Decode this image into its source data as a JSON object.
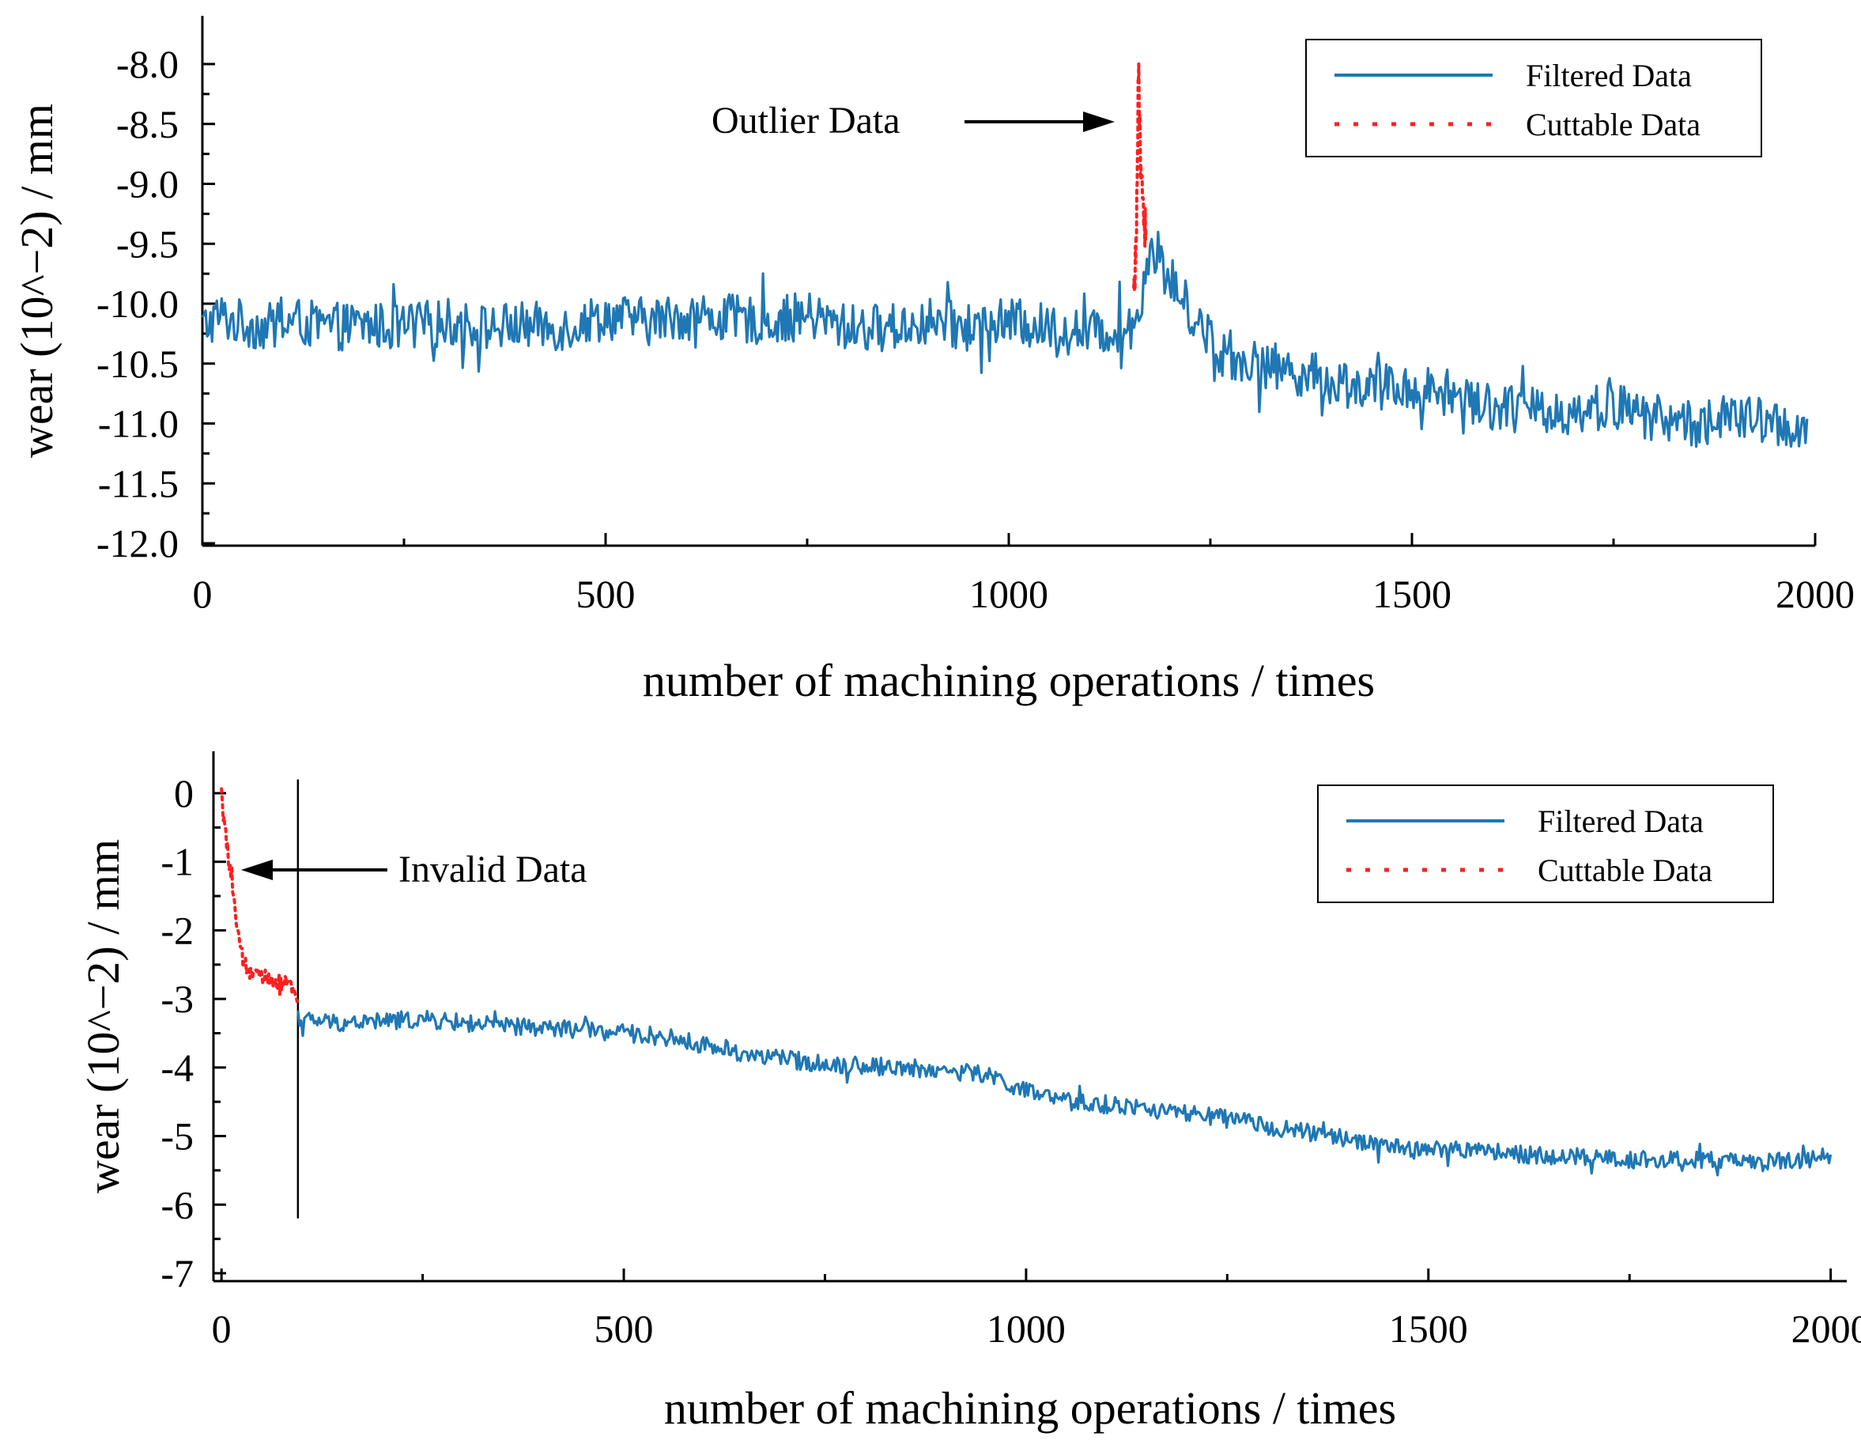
{
  "chart_data": [
    {
      "type": "line",
      "xlabel": "number of machining operations / times",
      "ylabel": "wear (10^−2) / mm",
      "xlim": [
        0,
        2000
      ],
      "ylim": [
        -12.0,
        -7.6
      ],
      "xticks": [
        0,
        500,
        1000,
        1500,
        2000
      ],
      "xtick_labels": [
        "0",
        "500",
        "1000",
        "1500",
        "2000"
      ],
      "yticks": [
        -12.0,
        -11.5,
        -11.0,
        -10.5,
        -10.0,
        -9.5,
        -9.0,
        -8.5,
        -8.0
      ],
      "ytick_labels": [
        "-12.0",
        "-11.5",
        "-11.0",
        "-10.5",
        "-10.0",
        "-9.5",
        "-9.0",
        "-8.5",
        "-8.0"
      ],
      "legend": {
        "position": "top-right",
        "entries": [
          "Filtered Data",
          "Cuttable Data"
        ]
      },
      "annotations": [
        {
          "text": "Outlier Data",
          "points_to": {
            "x": 1160,
            "y": -8.5
          }
        }
      ],
      "series": [
        {
          "name": "Filtered Data",
          "style": "solid",
          "color": "#1f77b4",
          "x": [
            0,
            20,
            40,
            80,
            120,
            150,
            200,
            250,
            300,
            350,
            400,
            450,
            500,
            550,
            600,
            650,
            700,
            750,
            800,
            850,
            900,
            950,
            1000,
            1050,
            1100,
            1150,
            1160,
            1175,
            1190,
            1220,
            1260,
            1300,
            1350,
            1400,
            1450,
            1500,
            1550,
            1600,
            1650,
            1700,
            1750,
            1800,
            1850,
            1900,
            1950,
            1990
          ],
          "y": [
            -10.2,
            -10.1,
            -10.15,
            -10.2,
            -10.15,
            -10.2,
            -10.18,
            -10.2,
            -10.15,
            -10.2,
            -10.18,
            -10.2,
            -10.1,
            -10.15,
            -10.1,
            -10.12,
            -10.15,
            -10.1,
            -10.2,
            -10.2,
            -10.15,
            -10.2,
            -10.15,
            -10.2,
            -10.25,
            -10.2,
            -10.1,
            -9.5,
            -9.7,
            -10.0,
            -10.4,
            -10.5,
            -10.55,
            -10.65,
            -10.7,
            -10.7,
            -10.75,
            -10.85,
            -10.9,
            -10.9,
            -10.85,
            -10.95,
            -11.0,
            -10.95,
            -11.0,
            -11.05
          ],
          "noise": 0.2,
          "n": 1000
        },
        {
          "name": "Cuttable Data",
          "style": "dotted",
          "color": "#ff1f1f",
          "x": [
            1155,
            1158,
            1161,
            1163,
            1165,
            1168,
            1170
          ],
          "y": [
            -10.0,
            -9.5,
            -8.1,
            -8.6,
            -9.0,
            -9.3,
            -9.5
          ],
          "noise": 0.15,
          "n": 40
        }
      ]
    },
    {
      "type": "line",
      "xlabel": "number of machining operations / times",
      "ylabel": "wear (10^−2) / mm",
      "xlim": [
        -10,
        2020
      ],
      "ylim": [
        -7,
        0.5
      ],
      "xticks": [
        0,
        500,
        1000,
        1500,
        2000
      ],
      "xtick_labels": [
        "0",
        "500",
        "1000",
        "1500",
        "2000"
      ],
      "yticks": [
        -7,
        -6,
        -5,
        -4,
        -3,
        -2,
        -1,
        0
      ],
      "ytick_labels": [
        "-7",
        "-6",
        "-5",
        "-4",
        "-3",
        "-2",
        "-1",
        "0"
      ],
      "legend": {
        "position": "top-right",
        "entries": [
          "Filtered Data",
          "Cuttable Data"
        ]
      },
      "annotations": [
        {
          "text": "Invalid Data",
          "points_to": {
            "x": 30,
            "y": -1.1
          }
        }
      ],
      "vline_x": 95,
      "series": [
        {
          "name": "Filtered Data",
          "style": "solid",
          "color": "#1f77b4",
          "x": [
            95,
            150,
            250,
            350,
            450,
            550,
            650,
            750,
            850,
            950,
            1000,
            1050,
            1150,
            1250,
            1350,
            1400,
            1450,
            1500,
            1550,
            1600,
            1650,
            1700,
            1750,
            1800,
            1850,
            1900,
            1950,
            2000
          ],
          "y": [
            -3.3,
            -3.35,
            -3.3,
            -3.4,
            -3.45,
            -3.55,
            -3.8,
            -3.95,
            -4.0,
            -4.1,
            -4.35,
            -4.5,
            -4.6,
            -4.75,
            -4.95,
            -5.05,
            -5.15,
            -5.2,
            -5.2,
            -5.25,
            -5.3,
            -5.3,
            -5.35,
            -5.35,
            -5.35,
            -5.4,
            -5.35,
            -5.3
          ],
          "noise": 0.13,
          "n": 950
        },
        {
          "name": "Cuttable Data",
          "style": "dotted",
          "color": "#ff1f1f",
          "x": [
            0,
            3,
            7,
            12,
            18,
            22,
            28,
            40,
            55,
            70,
            85,
            95
          ],
          "y": [
            0,
            -0.3,
            -0.8,
            -1.2,
            -1.8,
            -2.2,
            -2.5,
            -2.65,
            -2.7,
            -2.75,
            -2.8,
            -3.0
          ],
          "noise": 0.12,
          "n": 90
        }
      ]
    }
  ]
}
